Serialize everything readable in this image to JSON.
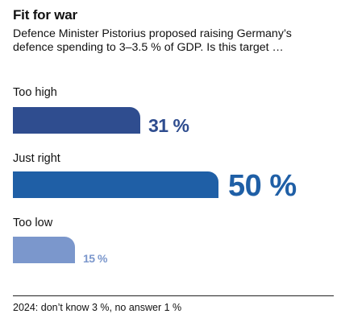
{
  "title": "Fit for war",
  "subtitle": "Defence Minister Pistorius proposed raising Germany’s defence spending to 3–3.5 % of GDP. Is this target …",
  "footnote": "2024: don’t know 3 %, no answer 1 %",
  "chart_data": {
    "type": "bar",
    "orientation": "horizontal",
    "categories": [
      "Too high",
      "Just right",
      "Too low"
    ],
    "values": [
      31,
      50,
      15
    ],
    "value_labels": [
      "31 %",
      "50 %",
      "15 %"
    ],
    "colors": [
      "#2f4d8f",
      "#1f5fa6",
      "#7b97cc"
    ],
    "xlim": [
      0,
      50
    ],
    "grid": false
  }
}
